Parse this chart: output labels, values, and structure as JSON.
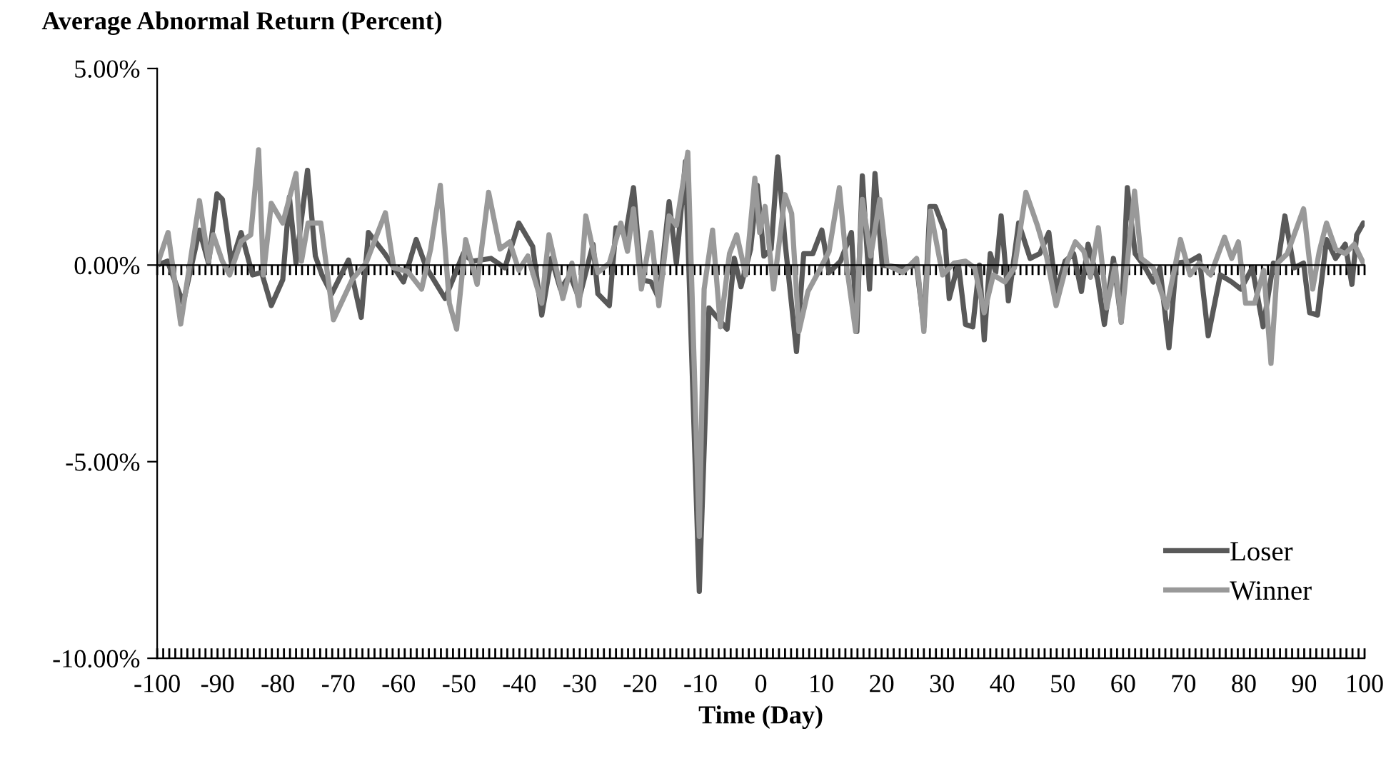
{
  "chart_data": {
    "type": "line",
    "title": "Average Abnormal Return (Percent)",
    "xlabel": "Time (Day)",
    "xlim": [
      -100,
      100
    ],
    "xticks": [
      -100,
      -90,
      -80,
      -70,
      -60,
      -50,
      -40,
      -30,
      -20,
      -10,
      0,
      10,
      20,
      30,
      40,
      50,
      60,
      70,
      80,
      90,
      100
    ],
    "ylim": [
      -10,
      5
    ],
    "yticks": [
      {
        "value": 5,
        "label": "5.00%"
      },
      {
        "value": 0,
        "label": "0.00%"
      },
      {
        "value": -5,
        "label": "-5.00%"
      },
      {
        "value": -10,
        "label": "-10.00%"
      }
    ],
    "legend": "bottom right",
    "marker": "none",
    "line_style": "solid",
    "series": [
      {
        "name": "Loser",
        "color": "#595959",
        "x": [
          -100,
          -98.3,
          -95.7,
          -93,
          -91.5,
          -90.1,
          -89.2,
          -87.7,
          -86.1,
          -84.2,
          -82.7,
          -81.1,
          -79.2,
          -78.1,
          -77,
          -75.1,
          -73.8,
          -72.7,
          -71.1,
          -68.3,
          -66.2,
          -65,
          -62.3,
          -59.2,
          -57.1,
          -55.4,
          -52.3,
          -49.3,
          -47.7,
          -44.7,
          -42.4,
          -40.1,
          -37.8,
          -36.3,
          -34.7,
          -33.2,
          -31.6,
          -30.1,
          -27.8,
          -27,
          -25.1,
          -24,
          -22.4,
          -21.1,
          -19.8,
          -18.2,
          -16.9,
          -15.2,
          -14,
          -12.5,
          -10.2,
          -8.6,
          -5.6,
          -4.4,
          -3.3,
          -1.7,
          -0.6,
          0.5,
          1.7,
          2.8,
          4.0,
          5.9,
          7.1,
          8.6,
          10.1,
          11.3,
          13.2,
          15,
          15.9,
          16.8,
          18,
          18.9,
          20.1,
          23.5,
          25.8,
          27,
          28,
          28.9,
          30.4,
          31.2,
          32.7,
          33.9,
          35.1,
          36.2,
          37,
          38,
          38.9,
          39.8,
          41,
          42.7,
          44.6,
          46.2,
          47.7,
          48.9,
          50.4,
          51.8,
          53.1,
          54.2,
          55.8,
          56.9,
          58.4,
          59.7,
          60.7,
          62,
          63.4,
          65,
          66.1,
          67.6,
          68.8,
          71.1,
          72.6,
          74.1,
          76.1,
          78,
          79.5,
          81.4,
          83.2,
          84.9,
          85.6,
          86.8,
          88.3,
          89.9,
          90.9,
          92.2,
          93.7,
          95.2,
          96.8,
          97.9,
          98.7,
          99.8
        ],
        "values": [
          0,
          0.1,
          -0.97,
          0.89,
          0.05,
          1.81,
          1.67,
          0.05,
          0.83,
          -0.25,
          -0.19,
          -1.03,
          -0.37,
          1.73,
          0.05,
          2.41,
          0.23,
          -0.25,
          -0.73,
          0.13,
          -1.33,
          0.83,
          0.29,
          -0.43,
          0.65,
          -0.07,
          -0.85,
          0.29,
          0.1,
          0.17,
          -0.07,
          1.07,
          0.47,
          -1.27,
          0.17,
          -0.61,
          -0.25,
          -0.85,
          0.53,
          -0.73,
          -1.03,
          0.95,
          0.77,
          1.97,
          -0.37,
          -0.43,
          -0.85,
          1.61,
          0.05,
          2.63,
          -8.3,
          -1.09,
          -1.63,
          0.17,
          -0.55,
          0.41,
          2.03,
          0.23,
          0.41,
          2.75,
          0.59,
          -2.2,
          0.29,
          0.29,
          0.89,
          -0.19,
          0.1,
          0.83,
          -1.69,
          2.27,
          -0.61,
          2.33,
          0,
          -0.07,
          0,
          -1.57,
          1.49,
          1.49,
          0.89,
          -0.85,
          0.05,
          -1.51,
          -1.57,
          0,
          -1.9,
          0.29,
          -0.19,
          1.25,
          -0.91,
          1.07,
          0.17,
          0.29,
          0.83,
          -0.67,
          0.1,
          0.29,
          -0.67,
          0.53,
          -0.37,
          -1.51,
          0.17,
          -1.45,
          1.97,
          0.29,
          0,
          -0.43,
          -0.07,
          -2.1,
          0.05,
          0.1,
          0.23,
          -1.8,
          -0.25,
          -0.43,
          -0.61,
          -0.07,
          -1.57,
          0.05,
          0,
          1.25,
          -0.07,
          0.05,
          -1.21,
          -1.27,
          0.65,
          0.17,
          0.53,
          -0.49,
          0.77,
          1.07
        ]
      },
      {
        "name": "Winner",
        "color": "#999999",
        "x": [
          -100,
          -98.2,
          -96.1,
          -93,
          -91.5,
          -90.7,
          -89.2,
          -88,
          -86.1,
          -84.5,
          -83.2,
          -82.4,
          -81.1,
          -79.2,
          -77,
          -76.1,
          -75,
          -72.9,
          -70.8,
          -67.7,
          -65.4,
          -63.9,
          -62.2,
          -60.8,
          -58.5,
          -56.2,
          -54.7,
          -53.1,
          -51.6,
          -50.4,
          -48.9,
          -47,
          -45.1,
          -43.2,
          -41.6,
          -40.1,
          -38.6,
          -36.3,
          -35.1,
          -32.8,
          -31.3,
          -30.1,
          -29,
          -27,
          -25.1,
          -23.2,
          -22.1,
          -21.1,
          -19.8,
          -18.2,
          -16.9,
          -15.2,
          -14,
          -12.1,
          -10.2,
          -9.4,
          -8,
          -6.7,
          -5.2,
          -4,
          -2.5,
          -1,
          -0.2,
          0.7,
          2.1,
          4,
          5.1,
          6.3,
          7.8,
          9.7,
          11.3,
          13,
          14.3,
          15.7,
          16.8,
          18.2,
          19.7,
          20.9,
          23.5,
          25.8,
          27,
          28.1,
          30.1,
          32,
          33.9,
          35.4,
          37,
          38.5,
          40.4,
          42,
          43.9,
          45.8,
          47.3,
          48.9,
          50.8,
          52.1,
          53.5,
          54.6,
          55.9,
          57.3,
          58.7,
          59.7,
          61.9,
          63,
          65,
          67.2,
          69.5,
          71.1,
          72.6,
          74.5,
          76.8,
          78,
          79.1,
          80.3,
          81.8,
          83.3,
          84.5,
          85.6,
          87.2,
          89.9,
          91.4,
          92.5,
          93.7,
          95.2,
          96.8,
          98.3,
          99.8
        ],
        "values": [
          0,
          0.83,
          -1.5,
          1.64,
          0.1,
          0.77,
          0.1,
          -0.25,
          0.6,
          0.77,
          2.93,
          -0.25,
          1.57,
          1.07,
          2.33,
          0.1,
          1.07,
          1.07,
          -1.39,
          -0.37,
          0.05,
          0.65,
          1.33,
          -0.07,
          -0.16,
          -0.61,
          0.41,
          2.03,
          -0.97,
          -1.63,
          0.65,
          -0.49,
          1.85,
          0.41,
          0.59,
          -0.13,
          0.23,
          -0.97,
          0.77,
          -0.85,
          0.05,
          -1.03,
          1.25,
          -0.19,
          0.05,
          1.07,
          0.35,
          1.43,
          -0.61,
          0.83,
          -1.03,
          1.25,
          1.01,
          2.87,
          -6.9,
          -0.61,
          0.89,
          -1.57,
          0.29,
          0.77,
          -0.25,
          2.21,
          0.83,
          1.49,
          -0.61,
          1.79,
          1.31,
          -1.69,
          -0.67,
          -0.13,
          0.35,
          1.97,
          -0.13,
          -1.69,
          1.67,
          0.23,
          1.67,
          0,
          -0.19,
          0.17,
          -1.69,
          1.37,
          -0.25,
          0.05,
          0.1,
          -0.07,
          -1.21,
          -0.25,
          -0.43,
          -0.07,
          1.85,
          1.01,
          0.23,
          -1.03,
          0.1,
          0.59,
          0.35,
          -0.31,
          0.95,
          -1.09,
          0,
          -1.45,
          1.88,
          0.17,
          -0.07,
          -1.09,
          0.65,
          -0.25,
          0.05,
          -0.25,
          0.71,
          0.17,
          0.59,
          -0.97,
          -0.97,
          -0.13,
          -2.5,
          0.05,
          0.29,
          1.43,
          -0.61,
          0.35,
          1.07,
          0.41,
          0.29,
          0.53,
          0.05
        ]
      }
    ]
  }
}
